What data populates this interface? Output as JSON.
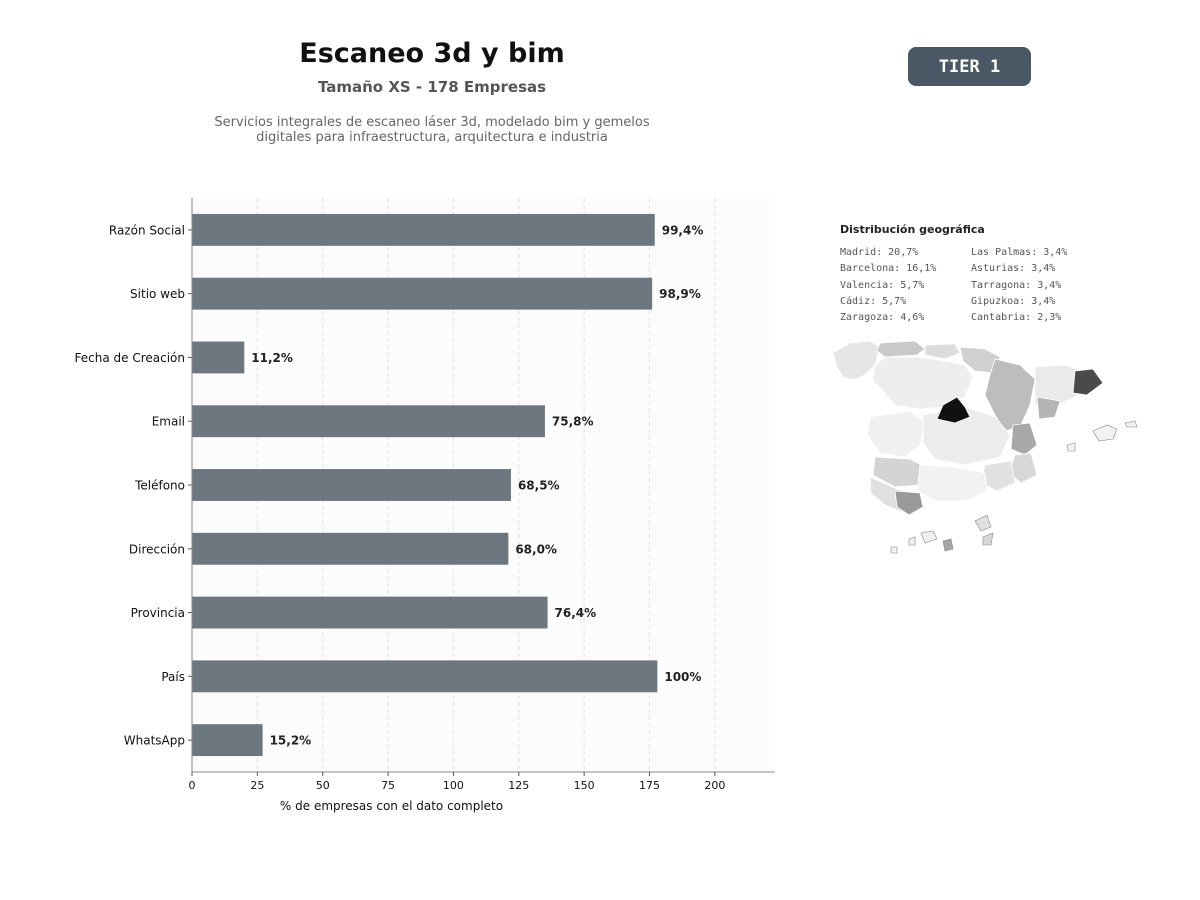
{
  "header": {
    "title": "Escaneo 3d y bim",
    "subtitle": "Tamaño XS - 178 Empresas",
    "description_line1": "Servicios integrales de escaneo láser 3d, modelado bim y gemelos",
    "description_line2": "digitales para infraestructura, arquitectura e industria"
  },
  "badge": {
    "label": "TIER 1",
    "color": "#4a5866"
  },
  "chart_data": {
    "type": "bar",
    "orientation": "horizontal",
    "categories": [
      "Razón Social",
      "Sitio web",
      "Fecha de Creación",
      "Email",
      "Teléfono",
      "Dirección",
      "Provincia",
      "País",
      "WhatsApp"
    ],
    "values": [
      177,
      176,
      20,
      135,
      122,
      121,
      136,
      178,
      27
    ],
    "data_labels": [
      "99,4%",
      "98,9%",
      "11,2%",
      "75,8%",
      "68,5%",
      "68,0%",
      "76,4%",
      "100%",
      "15,2%"
    ],
    "xlabel": "% de empresas con el dato completo",
    "ylabel": "",
    "xticks": [
      0,
      25,
      50,
      75,
      100,
      125,
      150,
      175,
      200
    ],
    "xlim": [
      0,
      223
    ],
    "bar_color": "#6c7780",
    "grid": "x-dashed",
    "legend": "none"
  },
  "geo": {
    "title": "Distribución geográfica",
    "items": [
      "Madrid: 20,7%",
      "Las Palmas: 3,4%",
      "Barcelona: 16,1%",
      "Asturias: 3,4%",
      "Valencia: 5,7%",
      "Tarragona: 3,4%",
      "Cádiz: 5,7%",
      "Gipuzkoa: 3,4%",
      "Zaragoza: 4,6%",
      "Cantabria: 2,3%"
    ]
  }
}
